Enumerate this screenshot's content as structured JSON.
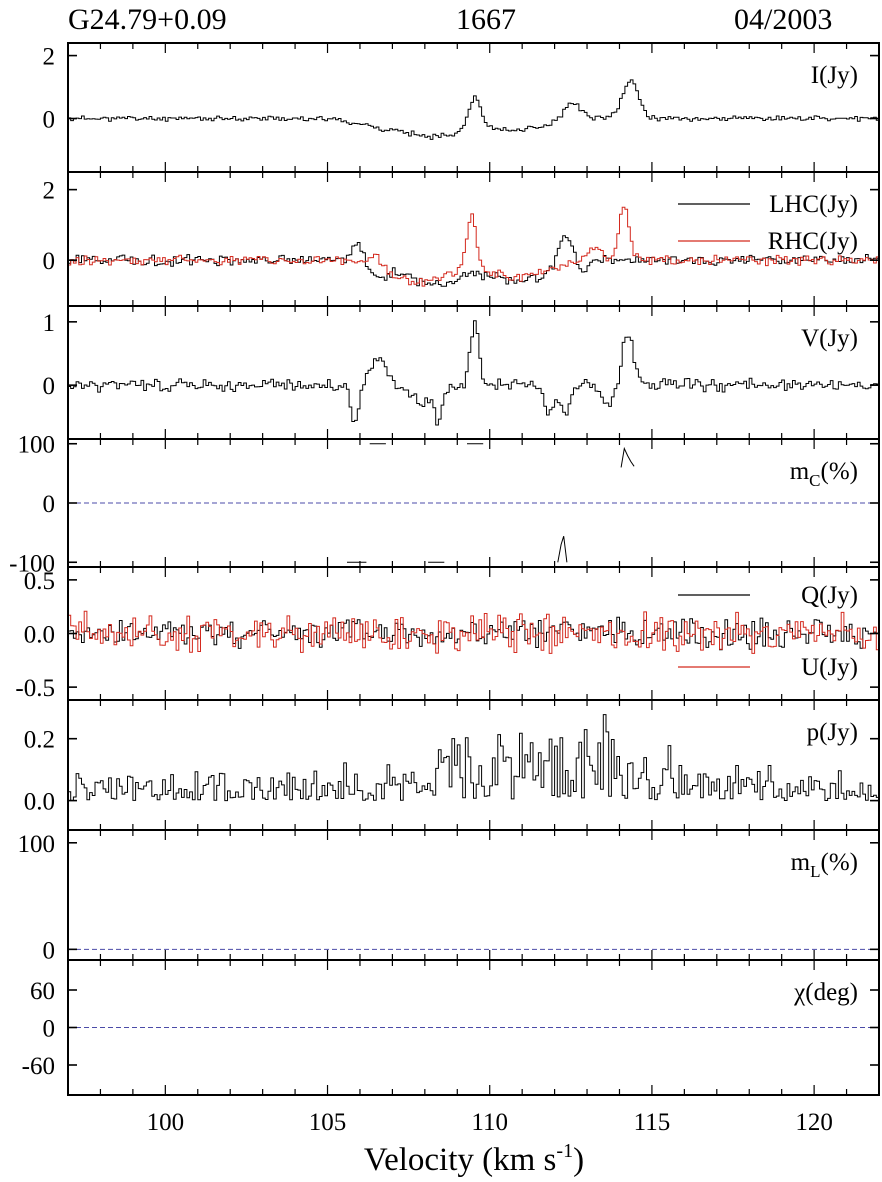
{
  "header": {
    "source": "G24.79+0.09",
    "frequency": "1667",
    "date": "04/2003"
  },
  "colors": {
    "black": "#000000",
    "red": "#d42a1f",
    "zero_line": "#4b4ba8"
  },
  "chart_data": [
    {
      "id": "I",
      "type": "line",
      "label": "I(Jy)",
      "ylim": [
        -1.7,
        2.4
      ],
      "yticks": [
        "2",
        "0"
      ],
      "ytick_values": [
        2,
        0
      ],
      "series": [
        {
          "color": "black",
          "baseline": 0.0,
          "noise": 0.05,
          "seed": 11,
          "features": [
            [
              108.2,
              -0.55,
              0.9
            ],
            [
              109.5,
              1.0,
              0.18
            ],
            [
              112.5,
              0.55,
              0.25
            ],
            [
              114.3,
              1.2,
              0.25
            ],
            [
              106.5,
              -0.2,
              0.7
            ],
            [
              110.8,
              -0.35,
              0.9
            ]
          ]
        }
      ]
    },
    {
      "id": "LR",
      "type": "line",
      "label": "",
      "legend": [
        "LHC(Jy)",
        "RHC(Jy)"
      ],
      "ylim": [
        -1.3,
        2.5
      ],
      "yticks": [
        "2",
        "0"
      ],
      "ytick_values": [
        2,
        0
      ],
      "series": [
        {
          "name": "LHC(Jy)",
          "color": "black",
          "baseline": 0.0,
          "noise": 0.09,
          "seed": 21,
          "features": [
            [
              105.9,
              0.55,
              0.2
            ],
            [
              106.5,
              -0.5,
              0.3
            ],
            [
              108.2,
              -0.7,
              0.8
            ],
            [
              110.8,
              -0.6,
              0.9
            ],
            [
              112.3,
              0.9,
              0.2
            ],
            [
              112.8,
              -0.3,
              0.2
            ]
          ]
        },
        {
          "name": "RHC(Jy)",
          "color": "red",
          "baseline": 0.0,
          "noise": 0.08,
          "seed": 22,
          "features": [
            [
              106.4,
              0.35,
              0.15
            ],
            [
              107.8,
              -0.6,
              0.9
            ],
            [
              109.4,
              1.5,
              0.15
            ],
            [
              110.8,
              -0.5,
              0.9
            ],
            [
              114.1,
              1.6,
              0.15
            ],
            [
              113.2,
              0.35,
              0.2
            ]
          ]
        }
      ]
    },
    {
      "id": "V",
      "type": "line",
      "label": "V(Jy)",
      "ylim": [
        -0.85,
        1.25
      ],
      "yticks": [
        "1",
        "0"
      ],
      "ytick_values": [
        1,
        0
      ],
      "series": [
        {
          "color": "black",
          "baseline": 0.0,
          "noise": 0.06,
          "seed": 31,
          "features": [
            [
              105.8,
              -0.55,
              0.12
            ],
            [
              106.5,
              0.4,
              0.25
            ],
            [
              107.9,
              -0.25,
              0.4
            ],
            [
              108.4,
              -0.5,
              0.1
            ],
            [
              109.5,
              1.0,
              0.13
            ],
            [
              111.8,
              -0.45,
              0.15
            ],
            [
              112.3,
              -0.5,
              0.12
            ],
            [
              114.2,
              0.85,
              0.16
            ],
            [
              113.6,
              -0.3,
              0.2
            ]
          ]
        }
      ]
    },
    {
      "id": "mC",
      "type": "line",
      "label": "m",
      "label_sub": "C",
      "label_suffix": "(%)",
      "ylim": [
        -108,
        108
      ],
      "yticks": [
        "100",
        "0",
        "-100"
      ],
      "ytick_values": [
        100,
        0,
        -100
      ],
      "zero_line": true,
      "segments": [
        {
          "color": "black",
          "points": [
            [
              106.3,
              100
            ],
            [
              106.8,
              100
            ]
          ]
        },
        {
          "color": "black",
          "points": [
            [
              109.3,
              100
            ],
            [
              109.8,
              100
            ]
          ]
        },
        {
          "color": "black",
          "points": [
            [
              105.6,
              -100
            ],
            [
              106.2,
              -100
            ]
          ]
        },
        {
          "color": "black",
          "points": [
            [
              108.1,
              -100
            ],
            [
              108.6,
              -100
            ]
          ]
        },
        {
          "color": "black",
          "points": [
            [
              114.05,
              60
            ],
            [
              114.15,
              92
            ],
            [
              114.25,
              80
            ],
            [
              114.35,
              70
            ],
            [
              114.45,
              62
            ]
          ]
        },
        {
          "color": "black",
          "points": [
            [
              112.1,
              -100
            ],
            [
              112.2,
              -70
            ],
            [
              112.28,
              -56
            ],
            [
              112.38,
              -100
            ]
          ]
        }
      ]
    },
    {
      "id": "QU",
      "type": "line",
      "label": "",
      "legend": [
        "Q(Jy)",
        "U(Jy)"
      ],
      "ylim": [
        -0.62,
        0.62
      ],
      "yticks": [
        "0.5",
        "0.0",
        "-0.5"
      ],
      "ytick_values": [
        0.5,
        0,
        -0.5
      ],
      "series": [
        {
          "name": "Q(Jy)",
          "color": "black",
          "baseline": 0.0,
          "noise": 0.08,
          "seed": 41,
          "features": []
        },
        {
          "name": "U(Jy)",
          "color": "red",
          "baseline": 0.0,
          "noise": 0.11,
          "seed": 42,
          "features": []
        }
      ]
    },
    {
      "id": "p",
      "type": "line",
      "label": "p(Jy)",
      "ylim": [
        -0.095,
        0.325
      ],
      "yticks": [
        "0.2",
        "0.0"
      ],
      "ytick_values": [
        0.2,
        0
      ],
      "series": [
        {
          "color": "black",
          "baseline": 0.02,
          "noise": 0.045,
          "seed": 51,
          "abs": true,
          "noise_boost": [
            [
              111.5,
              0.05,
              3.5
            ]
          ],
          "features": []
        }
      ]
    },
    {
      "id": "mL",
      "type": "line",
      "label": "m",
      "label_sub": "L",
      "label_suffix": "(%)",
      "ylim": [
        -10,
        112
      ],
      "yticks": [
        "100",
        "0"
      ],
      "ytick_values": [
        100,
        0
      ],
      "zero_line": true
    },
    {
      "id": "chi",
      "type": "line",
      "label": "χ(deg)",
      "ylim": [
        -108,
        108
      ],
      "yticks": [
        "60",
        "0",
        "-60"
      ],
      "ytick_values": [
        60,
        0,
        -60
      ],
      "zero_line": true
    }
  ],
  "xaxis": {
    "label": "Velocity (km s",
    "label_sup": "-1",
    "label_end": ")",
    "xlim": [
      97,
      122
    ],
    "ticks": [
      "100",
      "105",
      "110",
      "115",
      "120"
    ],
    "tick_values": [
      100,
      105,
      110,
      115,
      120
    ]
  }
}
